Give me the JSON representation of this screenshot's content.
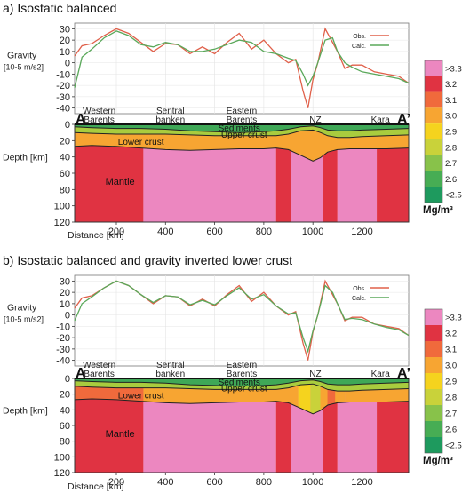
{
  "chart_data": [
    {
      "type": "line",
      "title": "a) Isostatic balanced",
      "gravity": {
        "ylabel_line1": "Gravity",
        "ylabel_line2": "[10-5 m/s2]",
        "ylim": [
          -45,
          35
        ],
        "yticks": [
          30,
          20,
          10,
          0,
          -10,
          -20,
          -30,
          -40
        ],
        "legend_position": "top-right",
        "series": [
          {
            "name": "Obs.",
            "color": "#e0604a",
            "x": [
              30,
              60,
              100,
              150,
              200,
              250,
              300,
              350,
              400,
              450,
              500,
              550,
              600,
              650,
              700,
              750,
              800,
              850,
              900,
              930,
              960,
              980,
              1000,
              1020,
              1050,
              1080,
              1100,
              1130,
              1160,
              1200,
              1250,
              1300,
              1350,
              1390
            ],
            "y": [
              6,
              15,
              17,
              24,
              30,
              26,
              18,
              10,
              17,
              16,
              8,
              14,
              8,
              18,
              26,
              12,
              20,
              8,
              0,
              3,
              -25,
              -40,
              -15,
              0,
              30,
              18,
              10,
              -5,
              -2,
              -2,
              -8,
              -10,
              -12,
              -18
            ]
          },
          {
            "name": "Calc.",
            "color": "#5aa85a",
            "x": [
              30,
              60,
              100,
              150,
              200,
              250,
              300,
              350,
              400,
              450,
              500,
              550,
              600,
              650,
              700,
              750,
              800,
              850,
              900,
              930,
              960,
              980,
              1000,
              1020,
              1050,
              1080,
              1100,
              1130,
              1160,
              1200,
              1250,
              1300,
              1350,
              1390
            ],
            "y": [
              -22,
              5,
              12,
              22,
              28,
              24,
              16,
              14,
              18,
              16,
              10,
              10,
              12,
              16,
              20,
              18,
              10,
              8,
              4,
              2,
              -10,
              -20,
              -12,
              0,
              20,
              22,
              10,
              0,
              -4,
              -8,
              -10,
              -12,
              -14,
              -18
            ]
          }
        ]
      },
      "section": {
        "ylabel": "Depth [km]",
        "xlabel": "Distance [km]",
        "xlim": [
          30,
          1390
        ],
        "ylim": [
          120,
          0
        ],
        "xticks": [
          200,
          400,
          600,
          800,
          1000,
          1200
        ],
        "yticks": [
          0,
          20,
          40,
          60,
          80,
          100,
          120
        ],
        "profile_start": "A",
        "profile_end": "A’",
        "region_labels": [
          {
            "text": "Western Barents",
            "x": 130
          },
          {
            "text": "Sentral banken",
            "x": 420
          },
          {
            "text": "Eastern Barents",
            "x": 710
          },
          {
            "text": "NZ",
            "x": 1010
          },
          {
            "text": "Kara",
            "x": 1275
          }
        ],
        "layer_labels": {
          "sediments": "Sediments",
          "upper_crust": "Upper crust",
          "lower_crust": "Lower crust",
          "mantle": "Mantle"
        },
        "boundaries": {
          "x": [
            30,
            100,
            200,
            300,
            400,
            500,
            600,
            700,
            800,
            850,
            900,
            950,
            1000,
            1030,
            1060,
            1100,
            1150,
            1200,
            1300,
            1390
          ],
          "sediment_base": [
            3,
            4,
            5,
            5,
            6,
            8,
            9,
            10,
            9,
            8,
            6,
            3,
            2,
            4,
            7,
            8,
            8,
            7,
            6,
            5
          ],
          "upper_crust_base": [
            10,
            11,
            12,
            12,
            12,
            13,
            14,
            14,
            14,
            14,
            12,
            8,
            7,
            10,
            14,
            16,
            16,
            15,
            14,
            13
          ],
          "moho": [
            27,
            26,
            27,
            29,
            31,
            32,
            31,
            30,
            30,
            29,
            31,
            38,
            45,
            41,
            34,
            31,
            30,
            30,
            30,
            29
          ]
        },
        "mantle_blocks": [
          {
            "from": 30,
            "to": 310,
            "value": 3.2
          },
          {
            "from": 310,
            "to": 850,
            "value": 3.3
          },
          {
            "from": 850,
            "to": 910,
            "value": 3.2
          },
          {
            "from": 910,
            "to": 1040,
            "value": 3.3
          },
          {
            "from": 1040,
            "to": 1100,
            "value": 3.2
          },
          {
            "from": 1100,
            "to": 1260,
            "value": 3.3
          },
          {
            "from": 1260,
            "to": 1390,
            "value": 3.2
          }
        ],
        "lower_crust_blocks": [
          {
            "from": 30,
            "to": 1390,
            "value": 3.0
          }
        ]
      }
    },
    {
      "type": "line",
      "title": "b) Isostatic balanced and gravity inverted lower crust",
      "gravity": {
        "ylabel_line1": "Gravity",
        "ylabel_line2": "[10-5 m/s2]",
        "ylim": [
          -45,
          35
        ],
        "yticks": [
          30,
          20,
          10,
          0,
          -10,
          -20,
          -30,
          -40
        ],
        "legend_position": "top-right",
        "series": [
          {
            "name": "Obs.",
            "color": "#e0604a",
            "x": [
              30,
              60,
              100,
              150,
              200,
              250,
              300,
              350,
              400,
              450,
              500,
              550,
              600,
              650,
              700,
              750,
              800,
              850,
              900,
              930,
              960,
              980,
              1000,
              1020,
              1050,
              1080,
              1100,
              1130,
              1160,
              1200,
              1250,
              1300,
              1350,
              1390
            ],
            "y": [
              6,
              15,
              17,
              24,
              30,
              26,
              18,
              10,
              17,
              16,
              8,
              14,
              8,
              18,
              26,
              12,
              20,
              8,
              0,
              3,
              -25,
              -40,
              -15,
              0,
              30,
              18,
              10,
              -5,
              -2,
              -2,
              -8,
              -10,
              -12,
              -18
            ]
          },
          {
            "name": "Calc.",
            "color": "#5aa85a",
            "x": [
              30,
              60,
              100,
              150,
              200,
              250,
              300,
              350,
              400,
              450,
              500,
              550,
              600,
              650,
              700,
              750,
              800,
              850,
              900,
              930,
              960,
              980,
              1000,
              1020,
              1050,
              1080,
              1100,
              1130,
              1160,
              1200,
              1250,
              1300,
              1350,
              1390
            ],
            "y": [
              -5,
              10,
              16,
              24,
              30,
              26,
              18,
              11,
              17,
              16,
              9,
              13,
              9,
              17,
              24,
              14,
              18,
              8,
              1,
              2,
              -20,
              -32,
              -14,
              0,
              26,
              20,
              10,
              -4,
              -3,
              -4,
              -8,
              -11,
              -13,
              -18
            ]
          }
        ]
      },
      "section": {
        "ylabel": "Depth [km]",
        "xlabel": "Distance [km]",
        "xlim": [
          30,
          1390
        ],
        "ylim": [
          120,
          0
        ],
        "xticks": [
          200,
          400,
          600,
          800,
          1000,
          1200
        ],
        "yticks": [
          0,
          20,
          40,
          60,
          80,
          100,
          120
        ],
        "profile_start": "A",
        "profile_end": "A’",
        "region_labels": [
          {
            "text": "Western Barents",
            "x": 130
          },
          {
            "text": "Sentral banken",
            "x": 420
          },
          {
            "text": "Eastern Barents",
            "x": 710
          },
          {
            "text": "NZ",
            "x": 1010
          },
          {
            "text": "Kara",
            "x": 1275
          }
        ],
        "layer_labels": {
          "sediments": "Sediments",
          "upper_crust": "Upper crust",
          "lower_crust": "Lower crust",
          "mantle": "Mantle"
        },
        "boundaries": {
          "x": [
            30,
            100,
            200,
            300,
            400,
            500,
            600,
            700,
            800,
            850,
            900,
            950,
            1000,
            1030,
            1060,
            1100,
            1150,
            1200,
            1300,
            1390
          ],
          "sediment_base": [
            3,
            4,
            5,
            5,
            6,
            8,
            9,
            10,
            9,
            8,
            6,
            3,
            2,
            4,
            7,
            8,
            8,
            7,
            6,
            5
          ],
          "upper_crust_base": [
            10,
            11,
            12,
            12,
            12,
            13,
            14,
            14,
            14,
            14,
            12,
            8,
            7,
            10,
            14,
            16,
            16,
            15,
            14,
            13
          ],
          "moho": [
            27,
            26,
            27,
            29,
            31,
            32,
            31,
            30,
            30,
            29,
            31,
            38,
            45,
            41,
            34,
            31,
            30,
            30,
            30,
            29
          ]
        },
        "mantle_blocks": [
          {
            "from": 30,
            "to": 310,
            "value": 3.2
          },
          {
            "from": 310,
            "to": 850,
            "value": 3.3
          },
          {
            "from": 850,
            "to": 910,
            "value": 3.2
          },
          {
            "from": 910,
            "to": 1040,
            "value": 3.3
          },
          {
            "from": 1040,
            "to": 1100,
            "value": 3.2
          },
          {
            "from": 1100,
            "to": 1260,
            "value": 3.3
          },
          {
            "from": 1260,
            "to": 1390,
            "value": 3.2
          }
        ],
        "lower_crust_blocks": [
          {
            "from": 30,
            "to": 310,
            "value": 3.1
          },
          {
            "from": 310,
            "to": 940,
            "value": 3.0
          },
          {
            "from": 940,
            "to": 990,
            "value": 2.9
          },
          {
            "from": 990,
            "to": 1030,
            "value": 2.8
          },
          {
            "from": 1030,
            "to": 1060,
            "value": 3.0
          },
          {
            "from": 1060,
            "to": 1090,
            "value": 3.1
          },
          {
            "from": 1090,
            "to": 1130,
            "value": 3.0
          },
          {
            "from": 1130,
            "to": 1390,
            "value": 3.0
          }
        ]
      }
    }
  ],
  "colorbar": {
    "unit": "Mg/m³",
    "labels": [
      ">3.3",
      "3.2",
      "3.1",
      "3.0",
      "2.9",
      "2.8",
      "2.7",
      "2.6",
      "<2.5"
    ],
    "colors": [
      "#ec87c0",
      "#e03342",
      "#f06a3c",
      "#f7a532",
      "#f5d31e",
      "#c9d23a",
      "#88c24a",
      "#47ad54",
      "#1e9a5e"
    ]
  }
}
